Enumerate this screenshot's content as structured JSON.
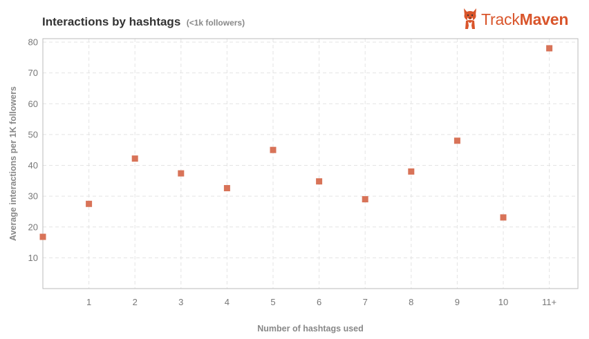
{
  "header": {
    "title": "Interactions by hashtags",
    "subtitle": "(<1k followers)"
  },
  "logo": {
    "text_light": "Track",
    "text_bold": "Maven",
    "icon": "corgi-dog-icon",
    "color": "#d9552b"
  },
  "chart_data": {
    "type": "scatter",
    "title": "Interactions by hashtags (<1k followers)",
    "xlabel": "Number of hashtags used",
    "ylabel": "Average interactions per 1K followers",
    "categories": [
      "0",
      "1",
      "2",
      "3",
      "4",
      "5",
      "6",
      "7",
      "8",
      "9",
      "10",
      "11+"
    ],
    "x_tick_labels": [
      "",
      "1",
      "2",
      "3",
      "4",
      "5",
      "6",
      "7",
      "8",
      "9",
      "10",
      "11+"
    ],
    "values": [
      16.8,
      27.5,
      42.2,
      37.4,
      32.6,
      45.0,
      34.8,
      29.0,
      38.0,
      48.0,
      23.1,
      78.0
    ],
    "ylim": [
      0,
      80
    ],
    "y_ticks": [
      10,
      20,
      30,
      40,
      50,
      60,
      70,
      80
    ],
    "grid": true,
    "marker": "square",
    "marker_color": "#d87358"
  }
}
